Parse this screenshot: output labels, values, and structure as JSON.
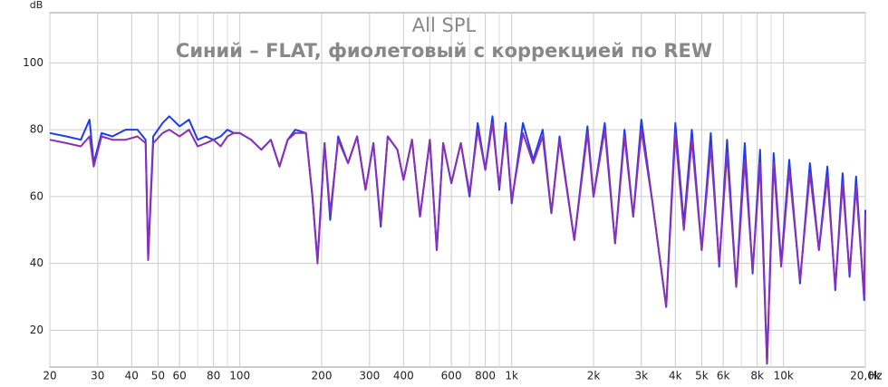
{
  "chart_data": {
    "type": "line",
    "title": "All SPL",
    "subtitle": "Синий – FLAT, фиолетовый с коррекцией по REW",
    "y_label": "dB",
    "x_label": "Hz",
    "log_x": true,
    "grid": true,
    "xlim": [
      20,
      20000
    ],
    "ylim": [
      9,
      115
    ],
    "yticks": [
      20,
      40,
      60,
      80,
      100
    ],
    "xticks": [
      20,
      30,
      40,
      50,
      60,
      80,
      100,
      200,
      300,
      400,
      600,
      800,
      {
        "value": 1000,
        "label": "1k"
      },
      {
        "value": 2000,
        "label": "2k"
      },
      {
        "value": 3000,
        "label": "3k"
      },
      {
        "value": 4000,
        "label": "4k"
      },
      {
        "value": 5000,
        "label": "5k"
      },
      {
        "value": 6000,
        "label": "6k"
      },
      {
        "value": 8000,
        "label": "8k"
      },
      {
        "value": 10000,
        "label": "10k"
      },
      {
        "value": 20000,
        "label": "20,0k"
      }
    ],
    "x_minor_grid": [
      70,
      90,
      500,
      700,
      900,
      7000,
      9000
    ],
    "x": [
      20,
      23,
      26,
      28,
      29,
      31,
      34,
      38,
      42,
      45,
      46,
      48,
      52,
      55,
      60,
      65,
      70,
      75,
      80,
      85,
      90,
      95,
      100,
      110,
      120,
      130,
      140,
      150,
      160,
      175,
      185,
      193,
      205,
      215,
      230,
      250,
      270,
      290,
      310,
      330,
      350,
      380,
      400,
      430,
      460,
      500,
      530,
      560,
      600,
      650,
      700,
      750,
      800,
      850,
      900,
      950,
      1000,
      1100,
      1200,
      1300,
      1400,
      1500,
      1700,
      1900,
      2000,
      2200,
      2400,
      2600,
      2800,
      3000,
      3300,
      3700,
      4000,
      4300,
      4600,
      5000,
      5400,
      5800,
      6200,
      6700,
      7200,
      7700,
      8200,
      8700,
      9200,
      9800,
      10500,
      11500,
      12500,
      13500,
      14500,
      15500,
      16500,
      17500,
      18500,
      19800,
      20000
    ],
    "series": [
      {
        "name": "FLAT",
        "color": "#1f3cf2",
        "values": [
          79,
          78,
          77,
          83,
          70,
          79,
          78,
          80,
          80,
          77,
          42,
          78,
          82,
          84,
          81,
          83,
          77,
          78,
          77,
          78,
          80,
          79,
          79,
          77,
          74,
          77,
          69,
          77,
          80,
          79,
          60,
          41,
          76,
          53,
          78,
          70,
          78,
          62,
          76,
          51,
          78,
          74,
          65,
          77,
          54,
          77,
          44,
          76,
          64,
          76,
          60,
          82,
          68,
          84,
          62,
          82,
          58,
          82,
          71,
          80,
          55,
          78,
          47,
          81,
          60,
          82,
          46,
          80,
          54,
          83,
          58,
          27,
          82,
          52,
          80,
          44,
          79,
          39,
          77,
          33,
          76,
          37,
          74,
          10,
          73,
          40,
          71,
          34,
          70,
          44,
          69,
          32,
          67,
          36,
          66,
          29,
          56
        ]
      },
      {
        "name": "REW",
        "color": "#8a2fb8",
        "values": [
          77,
          76,
          75,
          78,
          69,
          78,
          77,
          77,
          78,
          76,
          41,
          76,
          79,
          80,
          78,
          80,
          75,
          76,
          77,
          75,
          78,
          79,
          79,
          77,
          74,
          77,
          69,
          77,
          79,
          79,
          60,
          40,
          76,
          55,
          77,
          70,
          78,
          62,
          76,
          52,
          78,
          74,
          65,
          77,
          54,
          77,
          44,
          76,
          64,
          76,
          61,
          80,
          68,
          82,
          63,
          80,
          59,
          79,
          70,
          78,
          55,
          77,
          47,
          79,
          60,
          80,
          46,
          78,
          54,
          80,
          58,
          27,
          79,
          50,
          77,
          44,
          75,
          40,
          73,
          33,
          71,
          38,
          70,
          10,
          70,
          39,
          68,
          35,
          67,
          44,
          66,
          33,
          64,
          37,
          63,
          30,
          55
        ]
      }
    ]
  }
}
